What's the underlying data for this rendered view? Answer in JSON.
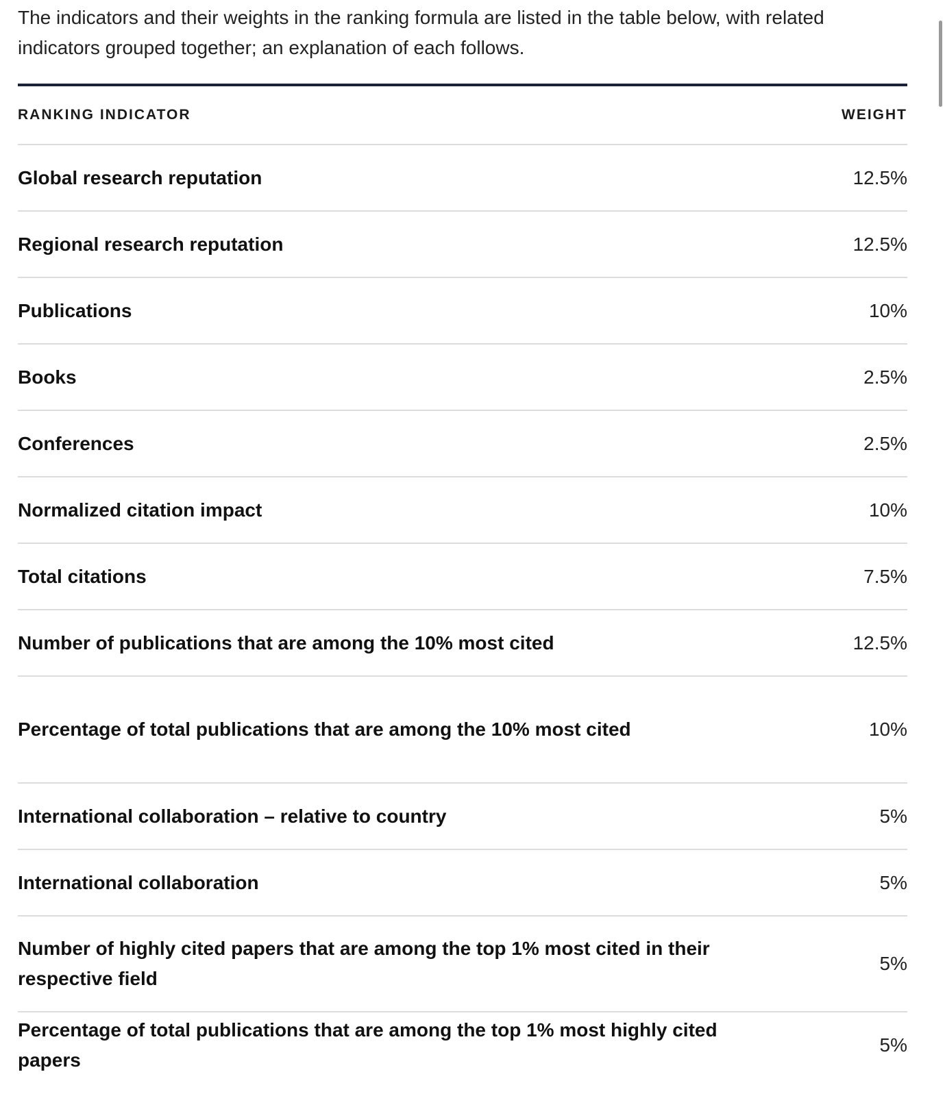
{
  "intro_text": "The indicators and their weights in the ranking formula are listed in the table below, with related indicators grouped together; an explanation of each follows.",
  "table": {
    "headers": {
      "indicator": "RANKING INDICATOR",
      "weight": "WEIGHT"
    },
    "rows": [
      {
        "indicator": "Global research reputation",
        "weight": "12.5%"
      },
      {
        "indicator": "Regional research reputation",
        "weight": "12.5%"
      },
      {
        "indicator": "Publications",
        "weight": "10%"
      },
      {
        "indicator": "Books",
        "weight": "2.5%"
      },
      {
        "indicator": "Conferences",
        "weight": "2.5%"
      },
      {
        "indicator": "Normalized citation impact",
        "weight": "10%"
      },
      {
        "indicator": "Total citations",
        "weight": "7.5%"
      },
      {
        "indicator": "Number of publications that are among the 10% most cited",
        "weight": "12.5%"
      },
      {
        "indicator": "Percentage of total publications that are among the 10% most cited",
        "weight": "10%"
      },
      {
        "indicator": "International collaboration – relative to country",
        "weight": "5%"
      },
      {
        "indicator": "International collaboration",
        "weight": "5%"
      },
      {
        "indicator": "Number of highly cited papers that are among the top 1% most cited in their respective field",
        "weight": "5%"
      },
      {
        "indicator": "Percentage of total publications that are among the top 1% most highly cited papers",
        "weight": "5%"
      }
    ]
  }
}
